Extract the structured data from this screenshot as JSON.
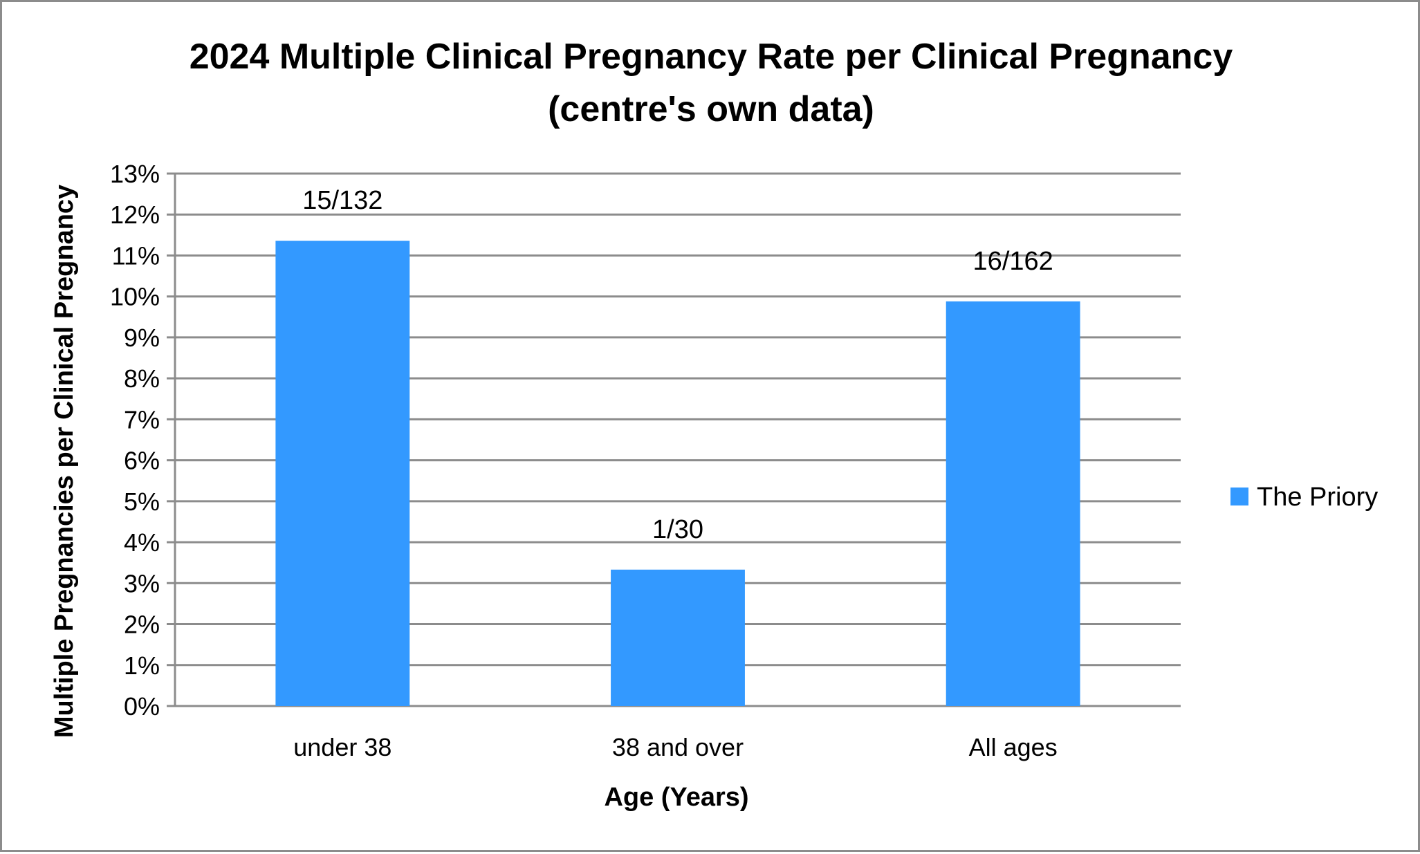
{
  "chart_data": {
    "type": "bar",
    "title_lines": [
      "2024 Multiple Clinical Pregnancy Rate per Clinical Pregnancy",
      "(centre's own data)"
    ],
    "xlabel": "Age (Years)",
    "ylabel": "Multiple Pregnancies per Clinical Pregnancy",
    "categories": [
      "under 38",
      "38 and over",
      "All ages"
    ],
    "series": [
      {
        "name": "The Priory",
        "color": "#3399ff",
        "values": [
          0.1136,
          0.0333,
          0.0988
        ],
        "data_labels": [
          "15/132",
          "1/30",
          "16/162"
        ]
      }
    ],
    "ylim": [
      0,
      0.13
    ],
    "yticks": [
      "0%",
      "1%",
      "2%",
      "3%",
      "4%",
      "5%",
      "6%",
      "7%",
      "8%",
      "9%",
      "10%",
      "11%",
      "12%",
      "13%"
    ],
    "grid": true,
    "legend_position": "right"
  }
}
